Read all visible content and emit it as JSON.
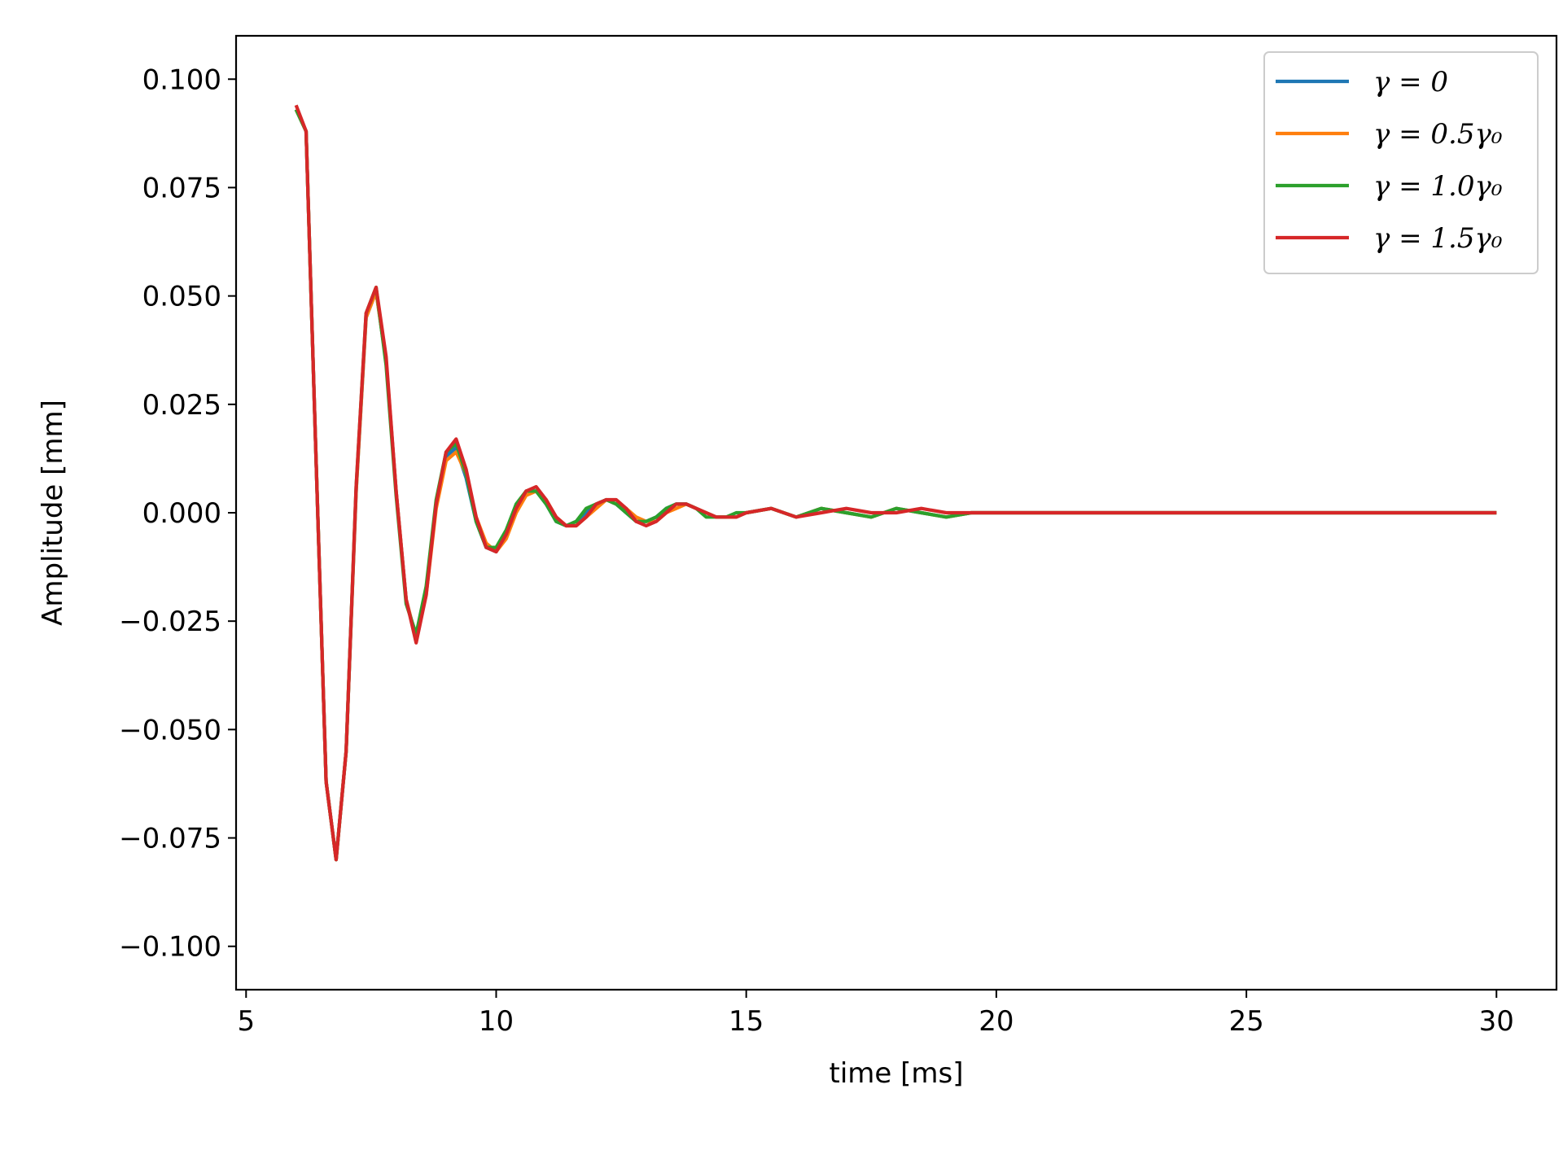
{
  "chart_data": {
    "type": "line",
    "xlabel": "time [ms]",
    "ylabel": "Amplitude [mm]",
    "xlim": [
      4.8,
      31.2
    ],
    "ylim": [
      -0.11,
      0.11
    ],
    "xticks": [
      5,
      10,
      15,
      20,
      25,
      30
    ],
    "xtick_labels": [
      "5",
      "10",
      "15",
      "20",
      "25",
      "30"
    ],
    "yticks": [
      0.1,
      0.075,
      0.05,
      0.025,
      0.0,
      -0.025,
      -0.05,
      -0.075,
      -0.1
    ],
    "ytick_labels": [
      "0.100",
      "0.075",
      "0.050",
      "0.025",
      "0.000",
      "−0.025",
      "−0.050",
      "−0.075",
      "−0.100"
    ],
    "grid": false,
    "legend_position": "top-right",
    "series": [
      {
        "name": "γ = 0",
        "color": "#1f77b4",
        "x": [
          6.0,
          6.2,
          6.4,
          6.6,
          6.8,
          7.0,
          7.2,
          7.4,
          7.6,
          7.8,
          8.0,
          8.2,
          8.4,
          8.6,
          8.8,
          9.0,
          9.2,
          9.4,
          9.6,
          9.8,
          10.0,
          10.2,
          10.4,
          10.6,
          10.8,
          11.0,
          11.2,
          11.4,
          11.6,
          11.8,
          12.0,
          12.2,
          12.4,
          12.6,
          12.8,
          13.0,
          13.2,
          13.4,
          13.6,
          13.8,
          14.0,
          14.2,
          14.4,
          14.6,
          14.8,
          15.0,
          15.5,
          16.0,
          16.5,
          17.0,
          17.5,
          18.0,
          18.5,
          19.0,
          19.5,
          20.0,
          21.0,
          22.0,
          23.0,
          24.0,
          25.0,
          26.0,
          27.0,
          28.0,
          29.0,
          30.0
        ],
        "y": [
          0.093,
          0.088,
          0.012,
          -0.062,
          -0.08,
          -0.055,
          0.005,
          0.045,
          0.051,
          0.035,
          0.005,
          -0.02,
          -0.029,
          -0.018,
          0.002,
          0.013,
          0.015,
          0.008,
          -0.002,
          -0.008,
          -0.009,
          -0.005,
          0.001,
          0.005,
          0.005,
          0.002,
          -0.002,
          -0.003,
          -0.002,
          0.0,
          0.002,
          0.003,
          0.002,
          0.0,
          -0.002,
          -0.002,
          -0.001,
          0.001,
          0.002,
          0.002,
          0.001,
          0.0,
          -0.001,
          -0.001,
          -0.001,
          0.0,
          0.001,
          -0.001,
          0.001,
          0.0,
          -0.001,
          0.001,
          0.0,
          -0.001,
          0.0,
          0.0,
          0.0,
          0.0,
          0.0,
          0.0,
          0.0,
          0.0,
          0.0,
          0.0,
          0.0,
          0.0
        ]
      },
      {
        "name": "γ = 0.5γ₀",
        "color": "#ff7f0e",
        "x": [
          6.0,
          6.2,
          6.4,
          6.6,
          6.8,
          7.0,
          7.2,
          7.4,
          7.6,
          7.8,
          8.0,
          8.2,
          8.4,
          8.6,
          8.8,
          9.0,
          9.2,
          9.4,
          9.6,
          9.8,
          10.0,
          10.2,
          10.4,
          10.6,
          10.8,
          11.0,
          11.2,
          11.4,
          11.6,
          11.8,
          12.0,
          12.2,
          12.4,
          12.6,
          12.8,
          13.0,
          13.2,
          13.4,
          13.6,
          13.8,
          14.0,
          14.2,
          14.4,
          14.6,
          14.8,
          15.0,
          15.5,
          16.0,
          16.5,
          17.0,
          17.5,
          18.0,
          18.5,
          19.0,
          19.5,
          20.0,
          21.0,
          22.0,
          23.0,
          24.0,
          25.0,
          26.0,
          27.0,
          28.0,
          29.0,
          30.0
        ],
        "y": [
          0.093,
          0.088,
          0.012,
          -0.062,
          -0.08,
          -0.055,
          0.005,
          0.045,
          0.051,
          0.035,
          0.005,
          -0.02,
          -0.029,
          -0.019,
          0.001,
          0.012,
          0.014,
          0.009,
          -0.001,
          -0.007,
          -0.009,
          -0.006,
          0.0,
          0.004,
          0.005,
          0.003,
          -0.001,
          -0.003,
          -0.003,
          -0.001,
          0.001,
          0.003,
          0.002,
          0.001,
          -0.001,
          -0.002,
          -0.002,
          0.0,
          0.001,
          0.002,
          0.001,
          0.0,
          -0.001,
          -0.001,
          -0.001,
          0.0,
          0.001,
          -0.001,
          0.001,
          0.0,
          -0.001,
          0.001,
          0.0,
          -0.001,
          0.0,
          0.0,
          0.0,
          0.0,
          0.0,
          0.0,
          0.0,
          0.0,
          0.0,
          0.0,
          0.0,
          0.0
        ]
      },
      {
        "name": "γ = 1.0γ₀",
        "color": "#2ca02c",
        "x": [
          6.0,
          6.2,
          6.4,
          6.6,
          6.8,
          7.0,
          7.2,
          7.4,
          7.6,
          7.8,
          8.0,
          8.2,
          8.4,
          8.6,
          8.8,
          9.0,
          9.2,
          9.4,
          9.6,
          9.8,
          10.0,
          10.2,
          10.4,
          10.6,
          10.8,
          11.0,
          11.2,
          11.4,
          11.6,
          11.8,
          12.0,
          12.2,
          12.4,
          12.6,
          12.8,
          13.0,
          13.2,
          13.4,
          13.6,
          13.8,
          14.0,
          14.2,
          14.4,
          14.6,
          14.8,
          15.0,
          15.5,
          16.0,
          16.5,
          17.0,
          17.5,
          18.0,
          18.5,
          19.0,
          19.5,
          20.0,
          21.0,
          22.0,
          23.0,
          24.0,
          25.0,
          26.0,
          27.0,
          28.0,
          29.0,
          30.0
        ],
        "y": [
          0.093,
          0.088,
          0.012,
          -0.062,
          -0.08,
          -0.055,
          0.006,
          0.046,
          0.052,
          0.034,
          0.004,
          -0.021,
          -0.028,
          -0.017,
          0.003,
          0.014,
          0.016,
          0.009,
          -0.002,
          -0.008,
          -0.008,
          -0.004,
          0.002,
          0.005,
          0.005,
          0.002,
          -0.002,
          -0.003,
          -0.002,
          0.001,
          0.002,
          0.003,
          0.002,
          0.0,
          -0.002,
          -0.002,
          -0.001,
          0.001,
          0.002,
          0.002,
          0.001,
          -0.001,
          -0.001,
          -0.001,
          0.0,
          0.0,
          0.001,
          -0.001,
          0.001,
          0.0,
          -0.001,
          0.001,
          0.0,
          -0.001,
          0.0,
          0.0,
          0.0,
          0.0,
          0.0,
          0.0,
          0.0,
          0.0,
          0.0,
          0.0,
          0.0,
          0.0
        ]
      },
      {
        "name": "γ = 1.5γ₀",
        "color": "#d62728",
        "x": [
          6.0,
          6.2,
          6.4,
          6.6,
          6.8,
          7.0,
          7.2,
          7.4,
          7.6,
          7.8,
          8.0,
          8.2,
          8.4,
          8.6,
          8.8,
          9.0,
          9.2,
          9.4,
          9.6,
          9.8,
          10.0,
          10.2,
          10.4,
          10.6,
          10.8,
          11.0,
          11.2,
          11.4,
          11.6,
          11.8,
          12.0,
          12.2,
          12.4,
          12.6,
          12.8,
          13.0,
          13.2,
          13.4,
          13.6,
          13.8,
          14.0,
          14.2,
          14.4,
          14.6,
          14.8,
          15.0,
          15.5,
          16.0,
          16.5,
          17.0,
          17.5,
          18.0,
          18.5,
          19.0,
          19.5,
          20.0,
          21.0,
          22.0,
          23.0,
          24.0,
          25.0,
          26.0,
          27.0,
          28.0,
          29.0,
          30.0
        ],
        "y": [
          0.094,
          0.088,
          0.012,
          -0.062,
          -0.08,
          -0.055,
          0.006,
          0.046,
          0.052,
          0.036,
          0.005,
          -0.02,
          -0.03,
          -0.019,
          0.002,
          0.014,
          0.017,
          0.01,
          -0.001,
          -0.008,
          -0.009,
          -0.005,
          0.001,
          0.005,
          0.006,
          0.003,
          -0.001,
          -0.003,
          -0.003,
          -0.001,
          0.002,
          0.003,
          0.003,
          0.001,
          -0.002,
          -0.003,
          -0.002,
          0.0,
          0.002,
          0.002,
          0.001,
          0.0,
          -0.001,
          -0.001,
          -0.001,
          0.0,
          0.001,
          -0.001,
          0.0,
          0.001,
          0.0,
          0.0,
          0.001,
          0.0,
          0.0,
          0.0,
          0.0,
          0.0,
          0.0,
          0.0,
          0.0,
          0.0,
          0.0,
          0.0,
          0.0,
          0.0
        ]
      }
    ]
  }
}
